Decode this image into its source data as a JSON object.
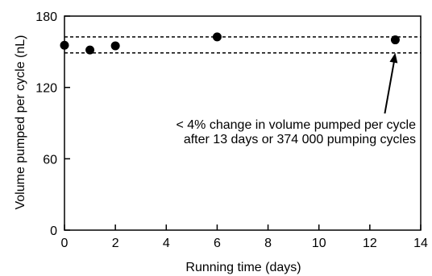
{
  "chart_data": {
    "type": "scatter",
    "xlabel": "Running time (days)",
    "ylabel": "Volume pumped per cycle (nL)",
    "xlim": [
      0,
      14
    ],
    "ylim": [
      0,
      180
    ],
    "xticks": [
      0,
      2,
      4,
      6,
      8,
      10,
      12,
      14
    ],
    "yticks": [
      0,
      60,
      120,
      180
    ],
    "grid": false,
    "series": [
      {
        "x": [
          0,
          1,
          2,
          6,
          13
        ],
        "y": [
          155.5,
          151.5,
          155,
          162.5,
          160
        ]
      }
    ],
    "reference_lines": [
      {
        "y": 162.5,
        "style": "dashed"
      },
      {
        "y": 149,
        "style": "dashed"
      }
    ],
    "annotation": {
      "lines": [
        "< 4% change in volume pumped per cycle",
        "after 13 days or 374 000 pumping cycles"
      ],
      "points_to": {
        "x": 13,
        "y": 149
      }
    }
  }
}
